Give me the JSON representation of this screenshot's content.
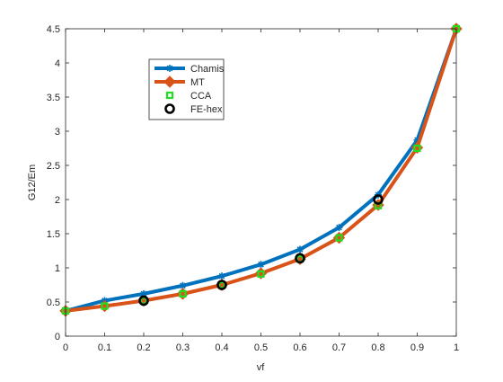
{
  "chart_data": {
    "type": "line",
    "xlabel": "vf",
    "ylabel": "G12/Em",
    "xlim": [
      0,
      1
    ],
    "ylim": [
      0,
      4.5
    ],
    "xticks": [
      0,
      0.1,
      0.2,
      0.3,
      0.4,
      0.5,
      0.6,
      0.7,
      0.8,
      0.9,
      1
    ],
    "xtick_labels": [
      "0",
      "0.1",
      "0.2",
      "0.3",
      "0.4",
      "0.5",
      "0.6",
      "0.7",
      "0.8",
      "0.9",
      "1"
    ],
    "yticks": [
      0,
      0.5,
      1,
      1.5,
      2,
      2.5,
      3,
      3.5,
      4,
      4.5
    ],
    "ytick_labels": [
      "0",
      "0.5",
      "1",
      "1.5",
      "2",
      "2.5",
      "3",
      "3.5",
      "4",
      "4.5"
    ],
    "grid": false,
    "legend_position": "upper-left",
    "x": [
      0,
      0.1,
      0.2,
      0.3,
      0.4,
      0.5,
      0.6,
      0.7,
      0.8,
      0.9,
      1
    ],
    "series": [
      {
        "name": "Chamis",
        "color": "#0072BD",
        "marker": "asterisk",
        "line": true,
        "x": [
          0,
          0.1,
          0.2,
          0.3,
          0.4,
          0.5,
          0.6,
          0.7,
          0.8,
          0.9,
          1
        ],
        "values": [
          0.37,
          0.52,
          0.62,
          0.74,
          0.88,
          1.05,
          1.27,
          1.59,
          2.07,
          2.87,
          4.5
        ]
      },
      {
        "name": "MT",
        "color": "#D95319",
        "marker": "diamond",
        "line": true,
        "x": [
          0,
          0.1,
          0.2,
          0.3,
          0.4,
          0.5,
          0.6,
          0.7,
          0.8,
          0.9,
          1
        ],
        "values": [
          0.37,
          0.44,
          0.52,
          0.62,
          0.75,
          0.92,
          1.13,
          1.44,
          1.92,
          2.76,
          4.5
        ]
      },
      {
        "name": "CCA",
        "color": "#22DD22",
        "marker": "square",
        "line": false,
        "x": [
          0,
          0.1,
          0.2,
          0.3,
          0.4,
          0.5,
          0.6,
          0.7,
          0.8,
          0.9,
          1
        ],
        "values": [
          0.37,
          0.44,
          0.52,
          0.62,
          0.75,
          0.91,
          1.13,
          1.44,
          1.91,
          2.75,
          4.5
        ]
      },
      {
        "name": "FE-hex",
        "color": "#000000",
        "marker": "circle",
        "line": false,
        "x": [
          0.2,
          0.4,
          0.6,
          0.8
        ],
        "values": [
          0.52,
          0.75,
          1.14,
          2.0
        ]
      }
    ]
  }
}
